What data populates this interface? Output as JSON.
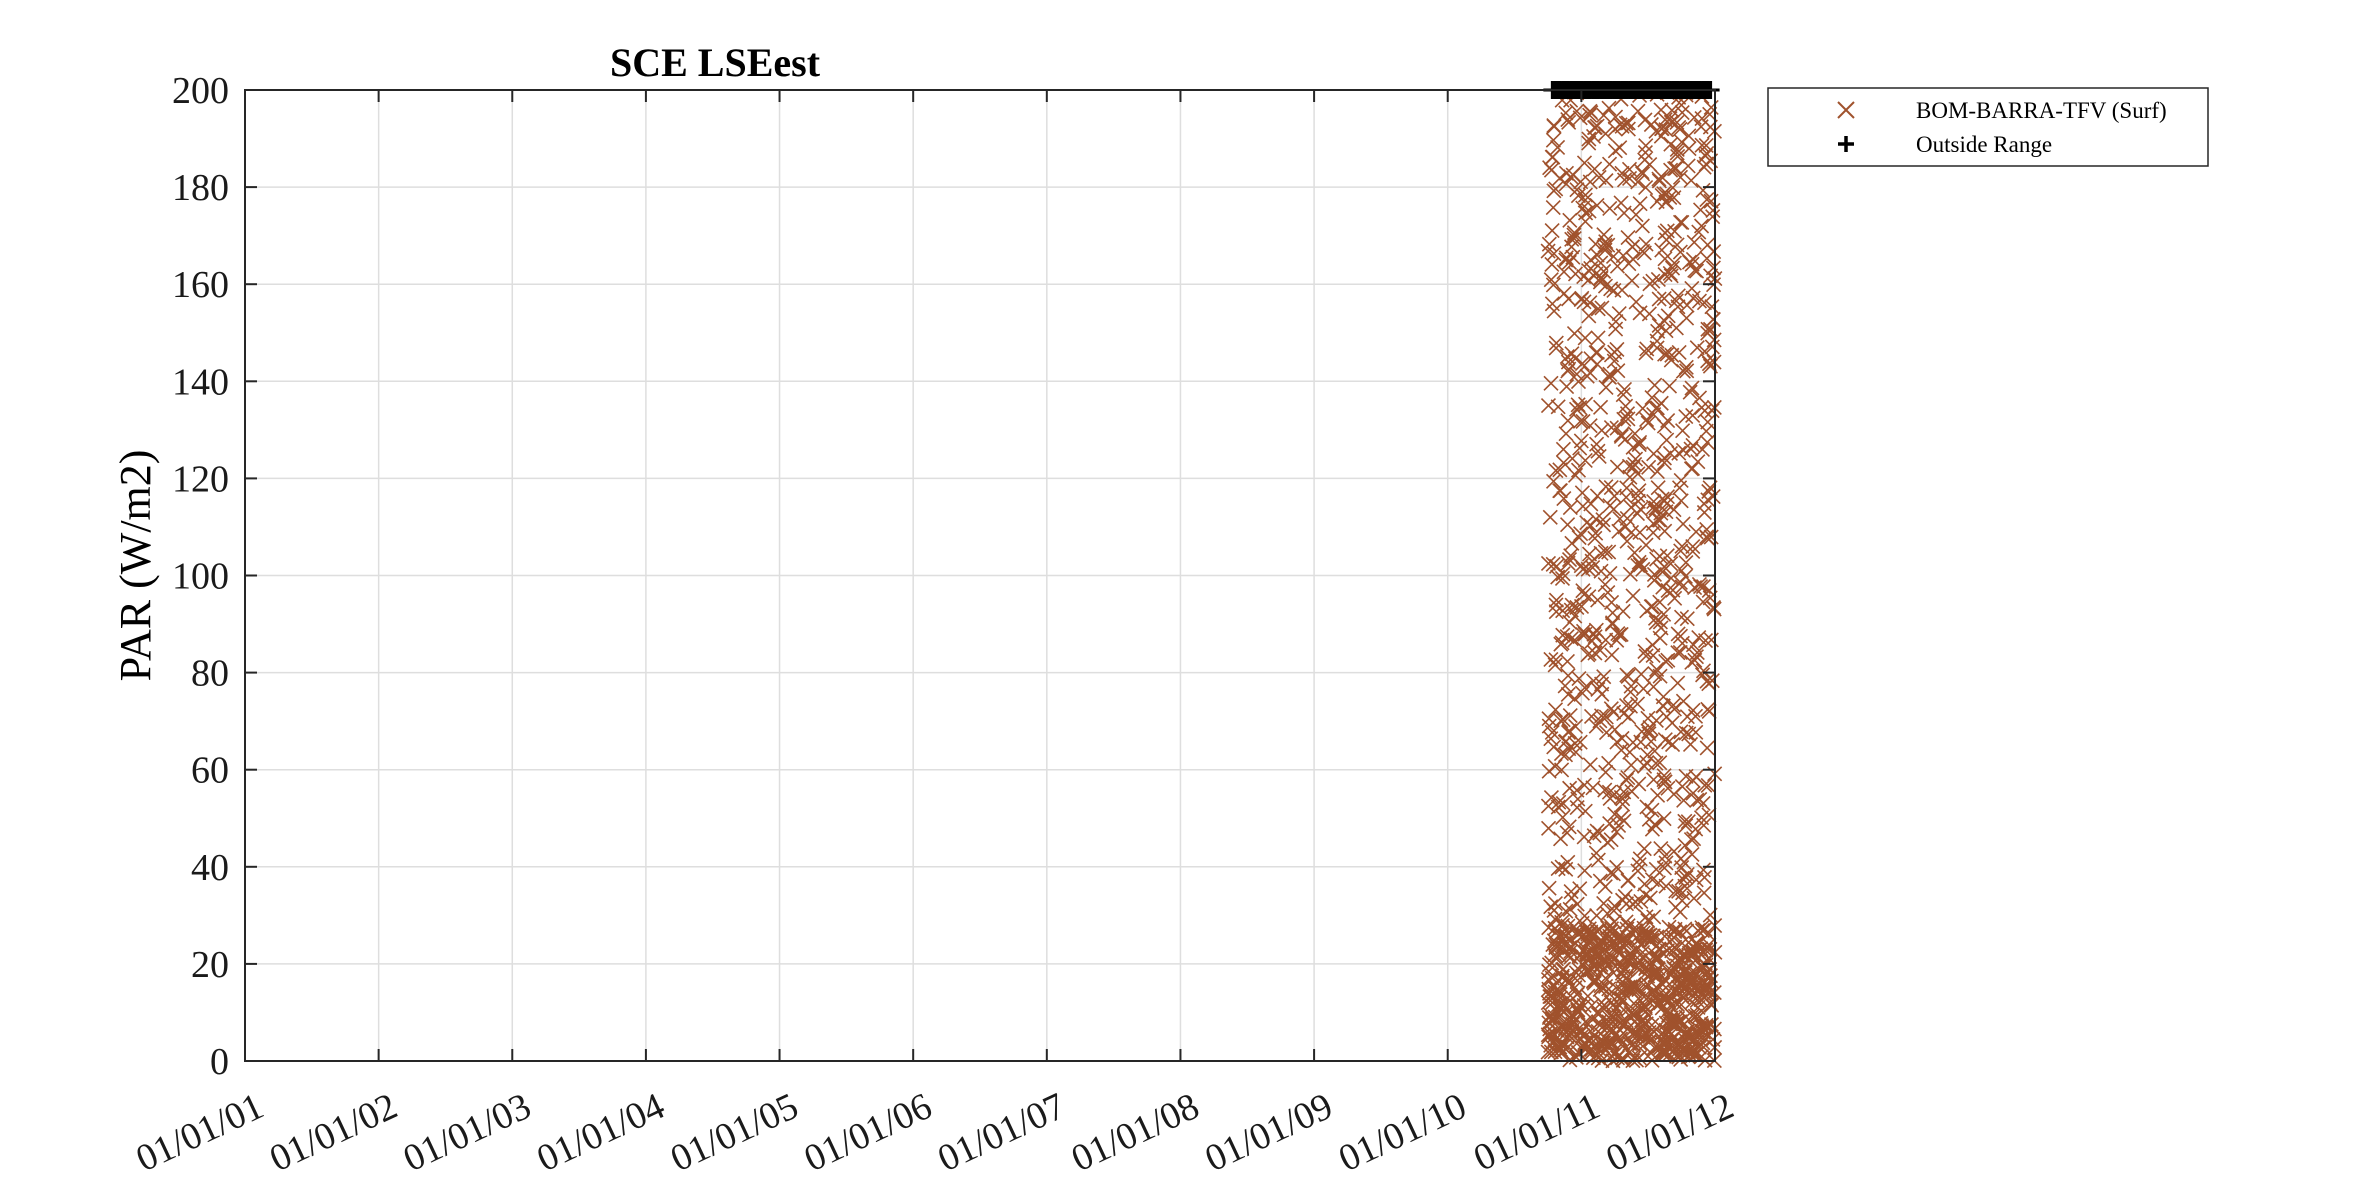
{
  "chart_data": {
    "type": "scatter",
    "title": "SCE LSEest",
    "xlabel": "",
    "ylabel": "PAR (W/m2)",
    "xlim": [
      "01/01/01",
      "01/01/12"
    ],
    "ylim": [
      0,
      200
    ],
    "x_ticks": [
      "01/01/01",
      "01/01/02",
      "01/01/03",
      "01/01/04",
      "01/01/05",
      "01/01/06",
      "01/01/07",
      "01/01/08",
      "01/01/09",
      "01/01/10",
      "01/01/11",
      "01/01/12"
    ],
    "y_ticks": [
      0,
      20,
      40,
      60,
      80,
      100,
      120,
      140,
      160,
      180,
      200
    ],
    "grid": true,
    "legend_position": "outside-top-right",
    "series": [
      {
        "name": "BOM-BARRA-TFV (Surf)",
        "marker": "x",
        "color": "#a0522d",
        "x_range": [
          "01/10/10",
          "01/01/12"
        ],
        "y_range": [
          0,
          200
        ],
        "description_density": "dense cloud, heaviest near 0-30"
      },
      {
        "name": "Outside Range",
        "marker": "+",
        "color": "#000000",
        "x_range": [
          "01/10/10",
          "01/01/12"
        ],
        "y_value": 200
      }
    ]
  },
  "colors": {
    "series": "#a0522d",
    "outside": "#000000",
    "grid": "#dcdcdc",
    "axis": "#262626"
  }
}
